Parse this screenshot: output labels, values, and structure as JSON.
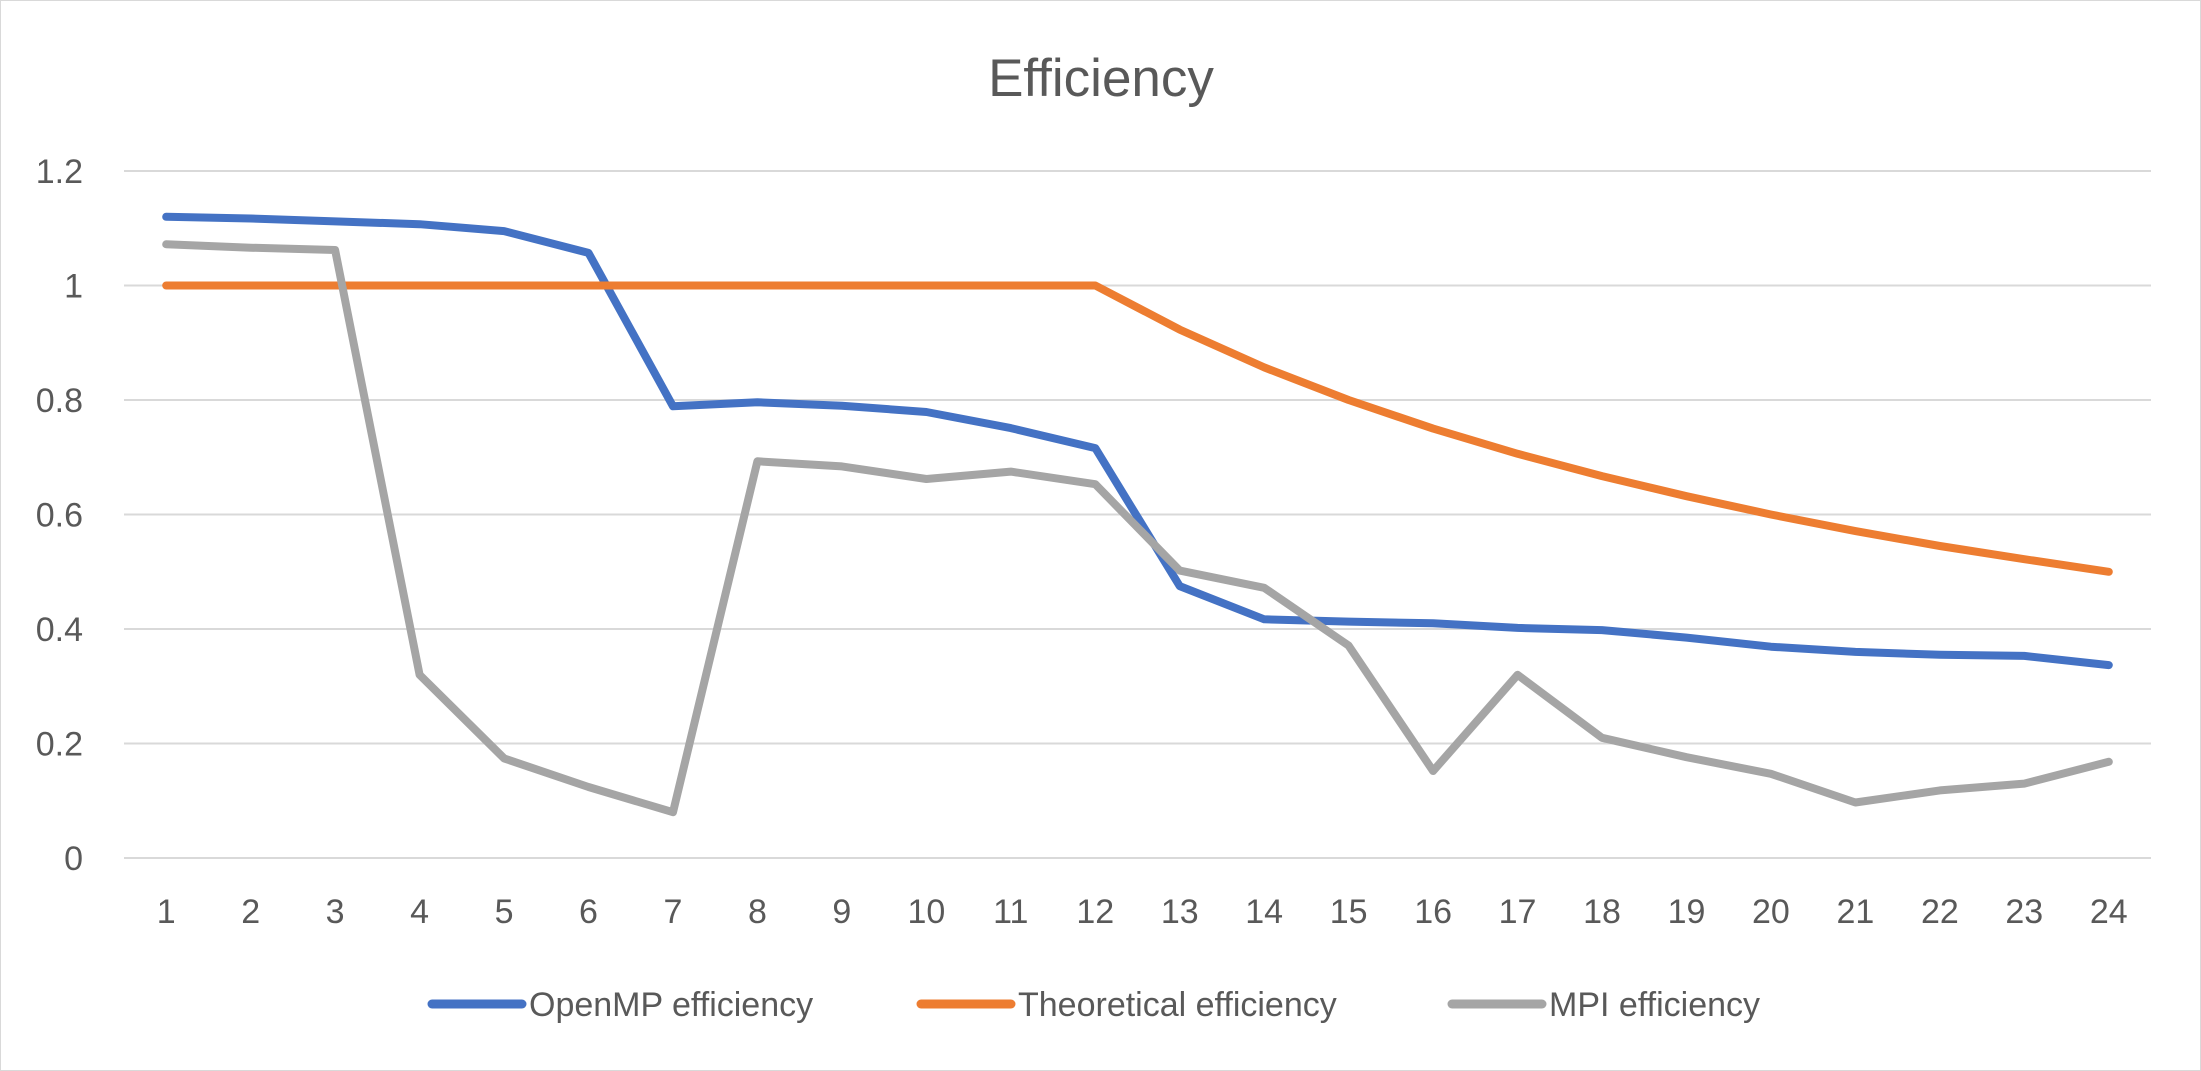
{
  "chart_data": {
    "type": "line",
    "title": "Efficiency",
    "xlabel": "",
    "ylabel": "",
    "categories": [
      "1",
      "2",
      "3",
      "4",
      "5",
      "6",
      "7",
      "8",
      "9",
      "10",
      "11",
      "12",
      "13",
      "14",
      "15",
      "16",
      "17",
      "18",
      "19",
      "20",
      "21",
      "22",
      "23",
      "24"
    ],
    "ylim": [
      0,
      1.2
    ],
    "yticks": [
      "0",
      "0.2",
      "0.4",
      "0.6",
      "0.8",
      "1",
      "1.2"
    ],
    "grid": true,
    "legend_position": "bottom",
    "series": [
      {
        "name": "OpenMP efficiency",
        "color": "#4472c4",
        "values": [
          1.12,
          1.117,
          1.112,
          1.107,
          1.095,
          1.057,
          0.789,
          0.796,
          0.79,
          0.779,
          0.751,
          0.716,
          0.475,
          0.417,
          0.413,
          0.41,
          0.402,
          0.398,
          0.385,
          0.369,
          0.36,
          0.355,
          0.353,
          0.337
        ]
      },
      {
        "name": "Theoretical efficiency",
        "color": "#ed7d31",
        "values": [
          1,
          1,
          1,
          1,
          1,
          1,
          1,
          1,
          1,
          1,
          1,
          1,
          0.923,
          0.857,
          0.8,
          0.75,
          0.706,
          0.667,
          0.632,
          0.6,
          0.571,
          0.545,
          0.522,
          0.5
        ]
      },
      {
        "name": "MPI efficiency",
        "color": "#a5a5a5",
        "values": [
          1.072,
          1.066,
          1.062,
          0.32,
          0.174,
          0.124,
          0.08,
          0.693,
          0.684,
          0.662,
          0.675,
          0.653,
          0.502,
          0.472,
          0.371,
          0.152,
          0.32,
          0.21,
          0.176,
          0.147,
          0.097,
          0.118,
          0.13,
          0.168
        ]
      }
    ]
  }
}
